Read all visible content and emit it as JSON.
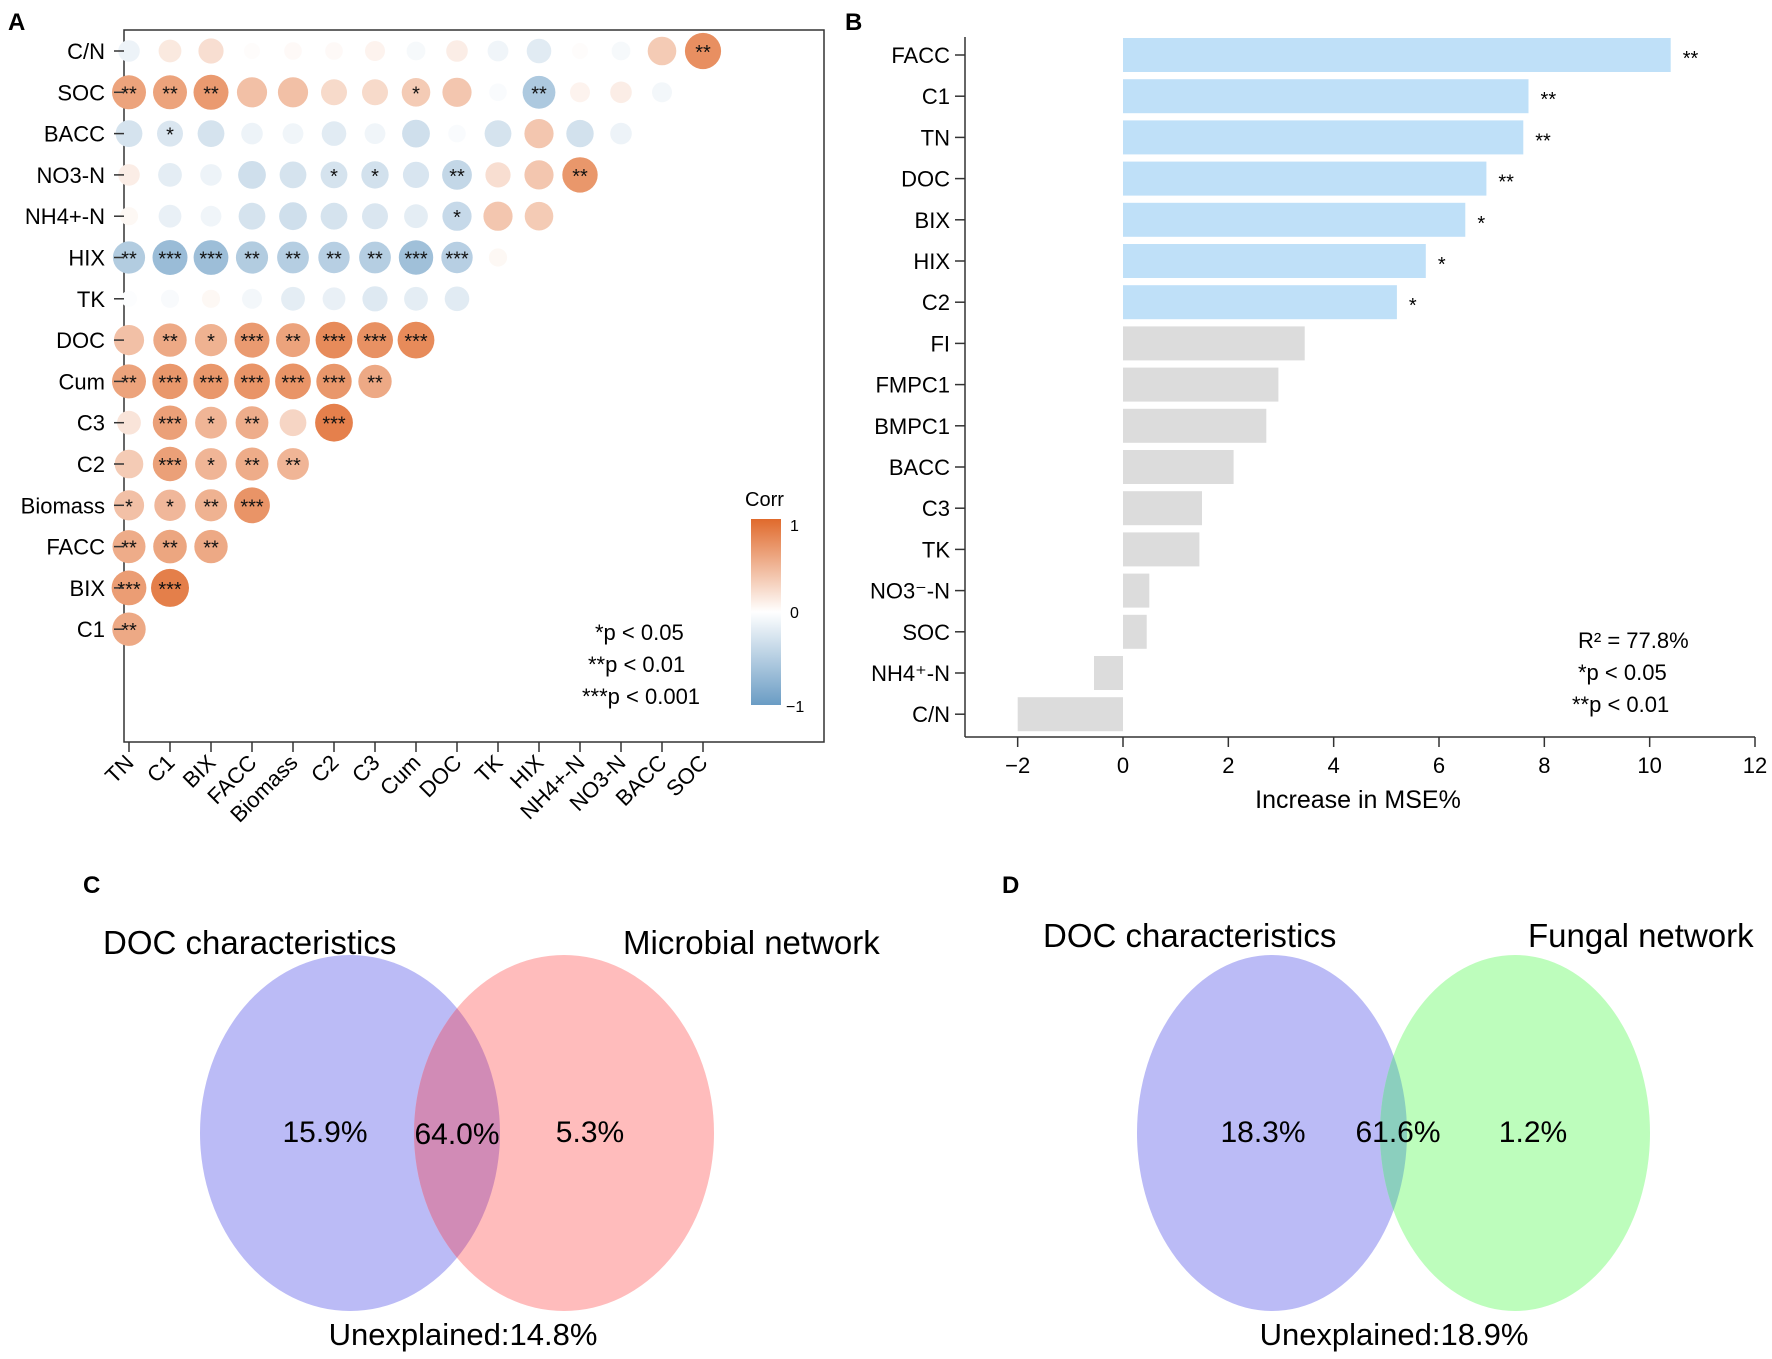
{
  "panels": {
    "A": "A",
    "B": "B",
    "C": "C",
    "D": "D"
  },
  "chart_data": [
    {
      "panel": "A",
      "type": "heatmap",
      "title": "",
      "row_labels": [
        "C/N",
        "SOC",
        "BACC",
        "NO3-N",
        "NH4+-N",
        "HIX",
        "TK",
        "DOC",
        "Cum",
        "C3",
        "C2",
        "Biomass",
        "FACC",
        "BIX",
        "C1"
      ],
      "col_labels": [
        "TN",
        "C1",
        "BIX",
        "FACC",
        "Biomass",
        "C2",
        "C3",
        "Cum",
        "DOC",
        "TK",
        "HIX",
        "NH4+-N",
        "NO3-N",
        "BACC",
        "SOC"
      ],
      "values": [
        [
          -0.12,
          0.15,
          0.22,
          0.02,
          0.04,
          0.04,
          0.08,
          -0.06,
          0.12,
          -0.1,
          -0.2,
          0.02,
          -0.06,
          0.35,
          0.75
        ],
        [
          0.62,
          0.62,
          0.68,
          0.42,
          0.42,
          0.25,
          0.25,
          0.35,
          0.38,
          -0.04,
          -0.55,
          0.08,
          0.12,
          -0.08
        ],
        [
          -0.28,
          -0.25,
          -0.28,
          -0.12,
          -0.1,
          -0.2,
          -0.1,
          -0.32,
          -0.04,
          -0.28,
          0.38,
          -0.3,
          -0.12
        ],
        [
          0.12,
          -0.18,
          -0.12,
          -0.32,
          -0.28,
          -0.28,
          -0.3,
          -0.26,
          -0.4,
          0.22,
          0.38,
          0.7
        ],
        [
          0.05,
          -0.15,
          -0.1,
          -0.28,
          -0.32,
          -0.28,
          -0.25,
          -0.18,
          -0.38,
          0.38,
          0.35
        ],
        [
          -0.52,
          -0.68,
          -0.66,
          -0.52,
          -0.5,
          -0.48,
          -0.5,
          -0.64,
          -0.48,
          0.05
        ],
        [
          -0.02,
          -0.05,
          0.05,
          -0.08,
          -0.18,
          -0.15,
          -0.22,
          -0.18,
          -0.2
        ],
        [
          0.42,
          0.58,
          0.52,
          0.68,
          0.62,
          0.78,
          0.74,
          0.78
        ],
        [
          0.62,
          0.7,
          0.7,
          0.72,
          0.72,
          0.7,
          0.58
        ],
        [
          0.18,
          0.64,
          0.5,
          0.55,
          0.28,
          0.85
        ],
        [
          0.35,
          0.64,
          0.5,
          0.56,
          0.5
        ],
        [
          0.42,
          0.48,
          0.52,
          0.72
        ],
        [
          0.56,
          0.6,
          0.58
        ],
        [
          0.66,
          0.86
        ],
        [
          0.58
        ]
      ],
      "significance": [
        [
          "",
          "",
          "",
          "",
          "",
          "",
          "",
          "",
          "",
          "",
          "",
          "",
          "",
          "",
          "**"
        ],
        [
          "**",
          "**",
          "**",
          "",
          "",
          "",
          "",
          "*",
          "",
          "",
          "**",
          "",
          "",
          ""
        ],
        [
          "",
          "*",
          "",
          "",
          "",
          "",
          "",
          "",
          "",
          "",
          "",
          "",
          ""
        ],
        [
          "",
          "",
          "",
          "",
          "",
          "*",
          "*",
          "",
          "**",
          "",
          "",
          "**"
        ],
        [
          "",
          "",
          "",
          "",
          "",
          "",
          "",
          "",
          "*",
          "",
          ""
        ],
        [
          "**",
          "***",
          "***",
          "**",
          "**",
          "**",
          "**",
          "***",
          "***",
          ""
        ],
        [
          "",
          "",
          "",
          "",
          "",
          "",
          "",
          "",
          ""
        ],
        [
          "",
          "**",
          "*",
          "***",
          "**",
          "***",
          "***",
          "***"
        ],
        [
          "**",
          "***",
          "***",
          "***",
          "***",
          "***",
          "**"
        ],
        [
          "",
          "***",
          "*",
          "**",
          "",
          "***"
        ],
        [
          "",
          "***",
          "*",
          "**",
          "**"
        ],
        [
          "*",
          "*",
          "**",
          "***"
        ],
        [
          "**",
          "**",
          "**"
        ],
        [
          "***",
          "***"
        ],
        [
          "**"
        ]
      ],
      "legend": {
        "title": "Corr",
        "ticks": [
          "1",
          "0",
          "−1"
        ],
        "colors": {
          "high": "#e06a2c",
          "mid": "#ffffff",
          "low": "#6a9cc4"
        },
        "placement": "right"
      },
      "notes": [
        "*p < 0.05",
        "**p < 0.01",
        "***p < 0.001"
      ]
    },
    {
      "panel": "B",
      "type": "bar",
      "orientation": "horizontal",
      "categories": [
        "FACC",
        "C1",
        "TN",
        "DOC",
        "BIX",
        "HIX",
        "C2",
        "FI",
        "FMPC1",
        "BMPC1",
        "BACC",
        "C3",
        "TK",
        "NO3⁻-N",
        "SOC",
        "NH4⁺-N",
        "C/N"
      ],
      "values": [
        10.4,
        7.7,
        7.6,
        6.9,
        6.5,
        5.75,
        5.2,
        3.45,
        2.95,
        2.72,
        2.1,
        1.5,
        1.45,
        0.5,
        0.45,
        -0.55,
        -2.0
      ],
      "significance": [
        "**",
        "**",
        "**",
        "**",
        "*",
        "*",
        "*",
        "",
        "",
        "",
        "",
        "",
        "",
        "",
        "",
        "",
        ""
      ],
      "bar_colors": {
        "significant": "#bfe0f8",
        "non_significant": "#dcdcdc"
      },
      "xlabel": "Increase in MSE%",
      "xlim": [
        -3,
        12
      ],
      "xticks": [
        "−2",
        "0",
        "2",
        "4",
        "6",
        "8",
        "10",
        "12"
      ],
      "annotations": [
        "R² = 77.8%",
        "*p < 0.05",
        "**p < 0.01"
      ]
    },
    {
      "panel": "C",
      "type": "venn",
      "sets": [
        "DOC characteristics",
        "Microbial network"
      ],
      "set_colors": [
        "#bbbbf6",
        "#ffbcbc"
      ],
      "overlap_color": "#d18bb6",
      "values": [
        "15.9%",
        "64.0%",
        "5.3%"
      ],
      "unexplained": "Unexplained:14.8%"
    },
    {
      "panel": "D",
      "type": "venn",
      "sets": [
        "DOC characteristics",
        "Fungal network"
      ],
      "set_colors": [
        "#bbbbf6",
        "#bdfdbc"
      ],
      "overlap_color": "#8bcfbe",
      "values": [
        "18.3%",
        "61.6%",
        "1.2%"
      ],
      "unexplained": "Unexplained:18.9%"
    }
  ]
}
